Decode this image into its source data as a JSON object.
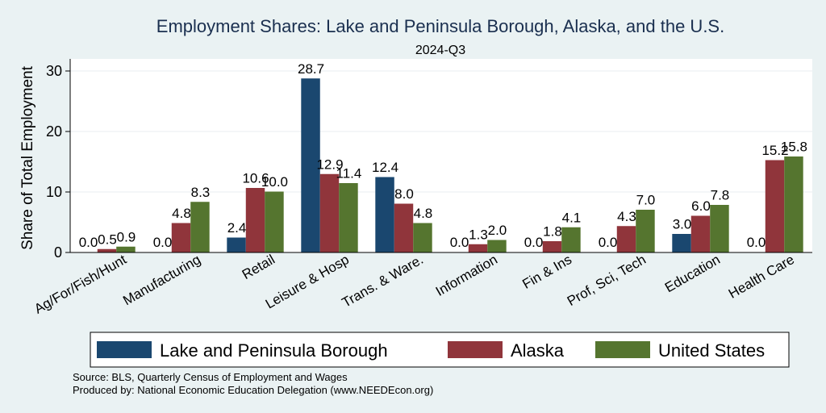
{
  "chart_data": {
    "type": "bar",
    "title": "Employment Shares: Lake and Peninsula Borough, Alaska, and the U.S.",
    "subtitle": "2024-Q3",
    "ylabel": "Share of Total Employment",
    "xlabel": "",
    "ylim": [
      0,
      32
    ],
    "yticks": [
      0,
      10,
      20,
      30
    ],
    "grid": true,
    "legend_position": "bottom",
    "categories": [
      "Ag/For/Fish/Hunt",
      "Manufacturing",
      "Retail",
      "Leisure & Hosp",
      "Trans. & Ware.",
      "Information",
      "Fin & Ins",
      "Prof, Sci, Tech",
      "Education",
      "Health Care"
    ],
    "series": [
      {
        "name": "Lake and Peninsula Borough",
        "color": "#1a476f",
        "values": [
          0.0,
          0.0,
          2.4,
          28.7,
          12.4,
          0.0,
          0.0,
          0.0,
          3.0,
          0.0
        ],
        "labels": [
          "0.0",
          "0.0",
          "2.4",
          "28.7",
          "12.4",
          "0.0",
          "0.0",
          "0.0",
          "3.0",
          "0.0"
        ]
      },
      {
        "name": "Alaska",
        "color": "#90353b",
        "values": [
          0.5,
          4.8,
          10.6,
          12.9,
          8.0,
          1.3,
          1.8,
          4.3,
          6.0,
          15.2
        ],
        "labels": [
          "0.5",
          "4.8",
          "10.6",
          "12.9",
          "8.0",
          "1.3",
          "1.8",
          "4.3",
          "6.0",
          "15.2"
        ]
      },
      {
        "name": "United States",
        "color": "#55752f",
        "values": [
          0.9,
          8.3,
          10.0,
          11.4,
          4.8,
          2.0,
          4.1,
          7.0,
          7.8,
          15.8
        ],
        "labels": [
          "0.9",
          "8.3",
          "10.0",
          "11.4",
          "4.8",
          "2.0",
          "4.1",
          "7.0",
          "7.8",
          "15.8"
        ]
      }
    ]
  },
  "notes": {
    "source": "Source: BLS, Quarterly Census of Employment and Wages",
    "produced": "Produced by: National Economic Education Delegation (www.NEEDEcon.org)"
  }
}
